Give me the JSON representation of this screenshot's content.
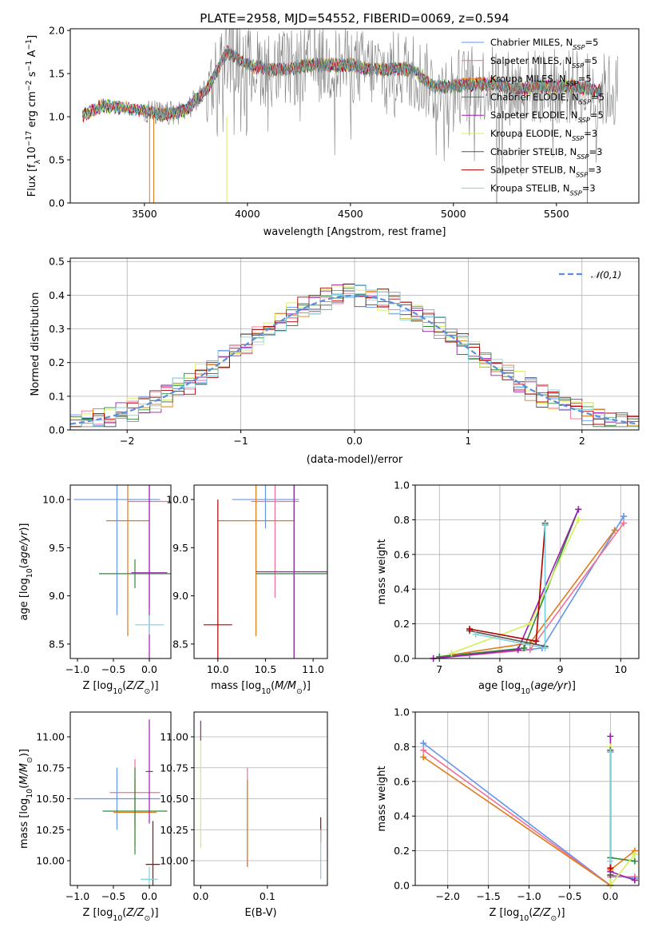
{
  "figure": {
    "title": "PLATE=2958, MJD=54552, FIBERID=0069, z=0.594"
  },
  "colors": {
    "chabrier_miles": "#6495ed",
    "salpeter_miles": "#ef6f98",
    "kroupa_miles": "#e07b1a",
    "chabrier_elodie": "#2e8b3a",
    "salpeter_elodie": "#9a1fae",
    "kroupa_elodie": "#d2f05a",
    "chabrier_stelib": "#555555",
    "salpeter_stelib": "#b30000",
    "kroupa_stelib": "#7fd3dc",
    "data": "#808080",
    "normal": "#5b8ee0"
  },
  "chart_data": [
    {
      "id": "spectrum",
      "type": "line",
      "title": "PLATE=2958, MJD=54552, FIBERID=0069, z=0.594",
      "xlabel": "wavelength [Angstrom, rest frame]",
      "ylabel": "Flux [f_λ 10^-17 erg cm^-2 s^-1 A^-1]",
      "xlim": [
        3140,
        5900
      ],
      "ylim": [
        0,
        2.02
      ],
      "xticks": [
        3500,
        4000,
        4500,
        5000,
        5500
      ],
      "yticks": [
        0.0,
        0.5,
        1.0,
        1.5,
        2.0
      ],
      "legend_position": "top-right",
      "legend": [
        "Chabrier MILES, N_SSP=5",
        "Salpeter MILES, N_SSP=5",
        "Kroupa MILES, N_SSP=5",
        "Chabrier ELODIE, N_SSP=5",
        "Salpeter ELODIE, N_SSP=5",
        "Kroupa ELODIE, N_SSP=3",
        "Chabrier STELIB, N_SSP=3",
        "Salpeter STELIB, N_SSP=3",
        "Kroupa STELIB, N_SSP=3"
      ],
      "data_envelope": {
        "wavelength": [
          3200,
          3300,
          3400,
          3500,
          3600,
          3700,
          3800,
          3900,
          4000,
          4100,
          4200,
          4300,
          4400,
          4500,
          4600,
          4700,
          4800,
          4900,
          5000,
          5100,
          5200,
          5300,
          5400,
          5500,
          5600,
          5700
        ],
        "flux": [
          1.02,
          1.13,
          1.1,
          1.07,
          1.02,
          1.08,
          1.3,
          1.75,
          1.6,
          1.55,
          1.55,
          1.6,
          1.6,
          1.6,
          1.55,
          1.55,
          1.55,
          1.35,
          1.35,
          1.38,
          1.38,
          1.32,
          1.35,
          1.35,
          1.35,
          1.3
        ]
      }
    },
    {
      "id": "residuals",
      "type": "line",
      "xlabel": "(data-model)/error",
      "ylabel": "Normed distribution",
      "xlim": [
        -2.5,
        2.5
      ],
      "ylim": [
        0,
        0.51
      ],
      "xticks": [
        -2,
        -1,
        0,
        1,
        2
      ],
      "yticks": [
        0.0,
        0.1,
        0.2,
        0.3,
        0.4,
        0.5
      ],
      "legend_position": "top-right",
      "legend": [
        "N(0,1)"
      ],
      "hist_bins_approx": {
        "x": [
          -2.4,
          -2.0,
          -1.6,
          -1.2,
          -0.8,
          -0.4,
          -0.2,
          0.0,
          0.2,
          0.4,
          0.8,
          1.2,
          1.6,
          2.0,
          2.4
        ],
        "y": [
          0.04,
          0.05,
          0.09,
          0.17,
          0.3,
          0.36,
          0.38,
          0.4,
          0.36,
          0.37,
          0.3,
          0.2,
          0.12,
          0.05,
          0.03
        ]
      }
    },
    {
      "id": "age_vs_Z",
      "type": "scatter",
      "xlabel": "Z [log10(Z/Z⊙)]",
      "ylabel": "age [log10(age/yr)]",
      "xlim": [
        -1.1,
        0.3
      ],
      "ylim": [
        8.35,
        10.15
      ],
      "xticks": [
        -1.0,
        -0.5,
        0.0
      ],
      "yticks": [
        8.5,
        9.0,
        9.5,
        10.0
      ],
      "errorbars": [
        {
          "x": -0.45,
          "y": 10.0,
          "xerr": 0.6,
          "yerr": 1.2,
          "series": "Chabrier MILES"
        },
        {
          "x": 0.0,
          "y": 9.98,
          "xerr": 0.3,
          "yerr": 1.1,
          "series": "Salpeter MILES"
        },
        {
          "x": -0.3,
          "y": 9.78,
          "xerr": 0.3,
          "yerr": 1.2,
          "series": "Kroupa MILES"
        },
        {
          "x": -0.2,
          "y": 9.23,
          "xerr": 0.5,
          "yerr": 0.15,
          "series": "Chabrier ELODIE"
        },
        {
          "x": 0.0,
          "y": 9.24,
          "xerr": 0.25,
          "yerr": 1.3,
          "series": "Salpeter ELODIE"
        },
        {
          "x": 0.0,
          "y": 8.7,
          "xerr": 0.2,
          "yerr": 0.1,
          "series": "Kroupa STELIB"
        }
      ]
    },
    {
      "id": "age_vs_mass",
      "type": "scatter",
      "xlabel": "mass [log10(M/M⊙)]",
      "ylabel": "",
      "xlim": [
        9.75,
        11.15
      ],
      "ylim": [
        8.35,
        10.15
      ],
      "xticks": [
        10.0,
        10.5,
        11.0
      ],
      "yticks": [
        8.5,
        9.0,
        9.5,
        10.0
      ],
      "errorbars": [
        {
          "x": 10.5,
          "y": 10.0,
          "xerr": 0.35,
          "yerr": 0.3,
          "series": "Chabrier MILES"
        },
        {
          "x": 10.6,
          "y": 9.98,
          "xerr": 0.25,
          "yerr": 1.0,
          "series": "Salpeter MILES"
        },
        {
          "x": 10.4,
          "y": 9.78,
          "xerr": 0.4,
          "yerr": 1.2,
          "series": "Kroupa MILES"
        },
        {
          "x": 10.8,
          "y": 9.23,
          "xerr": 0.4,
          "yerr": 1.0,
          "series": "Chabrier ELODIE"
        },
        {
          "x": 10.8,
          "y": 9.25,
          "xerr": 0.4,
          "yerr": 1.3,
          "series": "Salpeter ELODIE"
        },
        {
          "x": 10.0,
          "y": 8.7,
          "xerr": 0.15,
          "yerr": 1.3,
          "series": "Salpeter STELIB"
        }
      ]
    },
    {
      "id": "massweight_vs_age",
      "type": "line",
      "xlabel": "age [log10(age/yr)]",
      "ylabel": "mass weight",
      "xlim": [
        6.6,
        10.3
      ],
      "ylim": [
        0,
        1.0
      ],
      "xticks": [
        7,
        8,
        9,
        10
      ],
      "yticks": [
        0.0,
        0.2,
        0.4,
        0.6,
        0.8,
        1.0
      ],
      "series": [
        {
          "name": "Chabrier MILES",
          "x": [
            7.5,
            8.7,
            10.05
          ],
          "y": [
            0.02,
            0.06,
            0.82
          ]
        },
        {
          "name": "Salpeter MILES",
          "x": [
            6.9,
            8.5,
            10.05
          ],
          "y": [
            0.0,
            0.05,
            0.78
          ]
        },
        {
          "name": "Kroupa MILES",
          "x": [
            7.0,
            8.5,
            9.9
          ],
          "y": [
            0.01,
            0.09,
            0.74
          ]
        },
        {
          "name": "Chabrier ELODIE",
          "x": [
            7.0,
            8.4,
            9.3
          ],
          "y": [
            0.01,
            0.06,
            0.86
          ]
        },
        {
          "name": "Salpeter ELODIE",
          "x": [
            6.9,
            8.3,
            9.3
          ],
          "y": [
            0.0,
            0.05,
            0.86
          ]
        },
        {
          "name": "Kroupa ELODIE",
          "x": [
            7.2,
            8.5,
            9.3
          ],
          "y": [
            0.03,
            0.2,
            0.8
          ]
        },
        {
          "name": "Chabrier STELIB",
          "x": [
            7.5,
            8.75,
            8.75
          ],
          "y": [
            0.16,
            0.07,
            0.78
          ]
        },
        {
          "name": "Salpeter STELIB",
          "x": [
            7.5,
            8.6,
            8.75
          ],
          "y": [
            0.17,
            0.1,
            0.77
          ]
        },
        {
          "name": "Kroupa STELIB",
          "x": [
            7.6,
            8.75,
            8.75
          ],
          "y": [
            0.14,
            0.06,
            0.77
          ]
        }
      ]
    },
    {
      "id": "mass_vs_Z",
      "type": "scatter",
      "xlabel": "Z [log10(Z/Z⊙)]",
      "ylabel": "mass [log10(M/M⊙)]",
      "xlim": [
        -1.1,
        0.3
      ],
      "ylim": [
        9.8,
        11.2
      ],
      "xticks": [
        -1.0,
        -0.5,
        0.0
      ],
      "yticks": [
        10.0,
        10.25,
        10.5,
        10.75,
        11.0
      ],
      "errorbars": [
        {
          "x": -0.45,
          "y": 10.5,
          "xerr": 0.6,
          "yerr": 0.25,
          "series": "Chabrier MILES"
        },
        {
          "x": -0.2,
          "y": 10.55,
          "xerr": 0.35,
          "yerr": 0.27,
          "series": "Salpeter MILES"
        },
        {
          "x": -0.2,
          "y": 10.39,
          "xerr": 0.3,
          "yerr": 0.27,
          "series": "Kroupa MILES"
        },
        {
          "x": -0.2,
          "y": 10.4,
          "xerr": 0.45,
          "yerr": 0.35,
          "series": "Chabrier ELODIE"
        },
        {
          "x": 0.0,
          "y": 10.72,
          "xerr": 0.05,
          "yerr": 0.42,
          "series": "Salpeter ELODIE"
        },
        {
          "x": 0.05,
          "y": 9.97,
          "xerr": 0.1,
          "yerr": 0.35,
          "series": "Salpeter STELIB"
        },
        {
          "x": 0.0,
          "y": 9.85,
          "xerr": 0.12,
          "yerr": 0.1,
          "series": "Kroupa STELIB"
        }
      ]
    },
    {
      "id": "mass_vs_EBV",
      "type": "scatter",
      "xlabel": "E(B-V)",
      "ylabel": "",
      "xlim": [
        -0.01,
        0.19
      ],
      "ylim": [
        9.8,
        11.2
      ],
      "xticks": [
        0.0,
        0.1
      ],
      "yticks": [
        10.0,
        10.25,
        10.5,
        10.75,
        11.0
      ],
      "errorbars": [
        {
          "x": 0.0,
          "y": 10.6,
          "xerr": 0,
          "yerr": 0.5,
          "series": "Kroupa ELODIE"
        },
        {
          "x": 0.0,
          "y": 11.05,
          "xerr": 0,
          "yerr": 0.08,
          "series": "Salpeter ELODIE"
        },
        {
          "x": 0.07,
          "y": 10.35,
          "xerr": 0,
          "yerr": 0.4,
          "series": "Salpeter MILES"
        },
        {
          "x": 0.07,
          "y": 10.3,
          "xerr": 0,
          "yerr": 0.35,
          "series": "Kroupa MILES"
        },
        {
          "x": 0.18,
          "y": 10.25,
          "xerr": 0,
          "yerr": 0.1,
          "series": "Salpeter STELIB"
        },
        {
          "x": 0.18,
          "y": 10.05,
          "xerr": 0,
          "yerr": 0.2,
          "series": "Kroupa STELIB"
        }
      ]
    },
    {
      "id": "massweight_vs_Z",
      "type": "line",
      "xlabel": "Z [log10(Z/Z⊙)]",
      "ylabel": "mass weight",
      "xlim": [
        -2.4,
        0.35
      ],
      "ylim": [
        0,
        1.0
      ],
      "xticks": [
        -2.0,
        -1.5,
        -1.0,
        -0.5,
        0.0
      ],
      "yticks": [
        0.0,
        0.2,
        0.4,
        0.6,
        0.8,
        1.0
      ],
      "series": [
        {
          "name": "Chabrier MILES",
          "x": [
            -2.3,
            0.0,
            0.0,
            0.3
          ],
          "y": [
            0.82,
            0.0,
            0.06,
            0.04
          ]
        },
        {
          "name": "Salpeter MILES",
          "x": [
            -2.3,
            0.0,
            0.0,
            0.3
          ],
          "y": [
            0.78,
            0.0,
            0.05,
            0.05
          ]
        },
        {
          "name": "Kroupa MILES",
          "x": [
            -2.3,
            0.0,
            0.0,
            0.3
          ],
          "y": [
            0.74,
            0.0,
            0.09,
            0.2
          ]
        },
        {
          "name": "Chabrier ELODIE",
          "x": [
            0.0,
            0.0,
            0.3
          ],
          "y": [
            0.78,
            0.16,
            0.14
          ]
        },
        {
          "name": "Salpeter ELODIE",
          "x": [
            0.0,
            0.0,
            0.3
          ],
          "y": [
            0.86,
            0.08,
            0.03
          ]
        },
        {
          "name": "Kroupa ELODIE",
          "x": [
            0.0,
            0.0,
            0.3
          ],
          "y": [
            0.8,
            0.0,
            0.18
          ]
        },
        {
          "name": "Chabrier STELIB",
          "x": [
            0.0,
            0.0
          ],
          "y": [
            0.78,
            0.06
          ]
        },
        {
          "name": "Salpeter STELIB",
          "x": [
            0.0,
            0.0
          ],
          "y": [
            0.77,
            0.1
          ]
        },
        {
          "name": "Kroupa STELIB",
          "x": [
            0.0,
            0.0
          ],
          "y": [
            0.77,
            0.14
          ]
        }
      ]
    }
  ]
}
